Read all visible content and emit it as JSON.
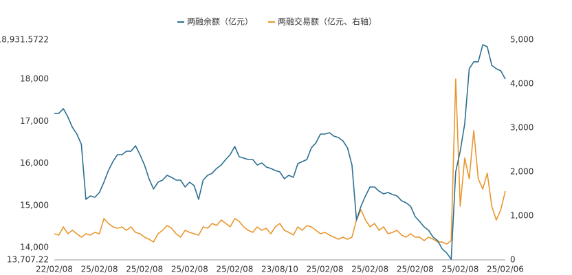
{
  "chart_data": {
    "type": "line",
    "categories": [
      "22/02/08",
      null,
      null,
      null,
      null,
      null,
      null,
      null,
      null,
      null,
      "25/02/08",
      null,
      null,
      null,
      null,
      null,
      null,
      null,
      null,
      null,
      "25/02/08",
      null,
      null,
      null,
      null,
      null,
      null,
      null,
      null,
      null,
      "25/02/08",
      null,
      null,
      null,
      null,
      null,
      null,
      null,
      null,
      null,
      "25/02/08",
      null,
      null,
      null,
      null,
      null,
      null,
      null,
      null,
      null,
      "23/08/10",
      null,
      null,
      null,
      null,
      null,
      null,
      null,
      null,
      null,
      "25/02/08",
      null,
      null,
      null,
      null,
      null,
      null,
      null,
      null,
      null,
      "25/02/08",
      null,
      null,
      null,
      null,
      null,
      null,
      null,
      null,
      null,
      "25/02/08",
      null,
      null,
      null,
      null,
      null,
      null,
      null,
      null,
      null,
      "25/02/08",
      null,
      null,
      null,
      null,
      null,
      null,
      null,
      null,
      null,
      "25/02/06"
    ],
    "series": [
      {
        "name": "两融余额（亿元）",
        "color": "#2b6f8f",
        "axis": "y",
        "values": [
          17185,
          17185,
          17299,
          17103,
          16858,
          16695,
          16450,
          15144,
          15226,
          15193,
          15307,
          15552,
          15830,
          16042,
          16205,
          16205,
          16287,
          16287,
          16418,
          16205,
          15960,
          15634,
          15389,
          15552,
          15601,
          15716,
          15667,
          15601,
          15601,
          15438,
          15552,
          15471,
          15144,
          15601,
          15716,
          15765,
          15879,
          15960,
          16091,
          16205,
          16401,
          16156,
          16124,
          16091,
          16091,
          15960,
          16009,
          15912,
          15879,
          15830,
          15797,
          15634,
          15716,
          15667,
          15993,
          16042,
          16091,
          16369,
          16483,
          16695,
          16695,
          16728,
          16646,
          16614,
          16532,
          16369,
          15960,
          14654,
          14981,
          15226,
          15438,
          15438,
          15340,
          15275,
          15307,
          15258,
          15226,
          15111,
          15063,
          14981,
          14736,
          14622,
          14491,
          14409,
          14246,
          14164,
          13969,
          13871,
          13720,
          15797,
          16287,
          16940,
          18246,
          18410,
          18410,
          18817,
          18768,
          18328,
          18246,
          18197,
          18001
        ]
      },
      {
        "name": "两融交易额（亿元、右轴）",
        "color": "#e8962c",
        "axis": "y2",
        "values": [
          594,
          563,
          750,
          594,
          672,
          594,
          516,
          594,
          563,
          625,
          594,
          938,
          828,
          750,
          719,
          750,
          672,
          750,
          625,
          594,
          516,
          469,
          406,
          594,
          672,
          781,
          719,
          594,
          516,
          672,
          625,
          594,
          563,
          750,
          719,
          828,
          781,
          906,
          828,
          750,
          938,
          875,
          750,
          672,
          625,
          750,
          672,
          719,
          594,
          750,
          828,
          672,
          625,
          563,
          750,
          672,
          781,
          750,
          672,
          594,
          625,
          563,
          516,
          469,
          516,
          469,
          516,
          906,
          1141,
          906,
          750,
          828,
          672,
          750,
          594,
          625,
          672,
          563,
          516,
          594,
          516,
          516,
          438,
          516,
          469,
          406,
          406,
          359,
          438,
          4109,
          1219,
          2313,
          1844,
          2938,
          1844,
          1609,
          1969,
          1219,
          906,
          1141,
          1563
        ]
      }
    ],
    "ylim": [
      13707.22,
      18931.5722
    ],
    "yticks": [
      {
        "value": 13707.22,
        "label": "13,707.22"
      },
      {
        "value": 14000,
        "label": "14,000"
      },
      {
        "value": 15000,
        "label": "15,000"
      },
      {
        "value": 16000,
        "label": "16,000"
      },
      {
        "value": 17000,
        "label": "17,000"
      },
      {
        "value": 18000,
        "label": "18,000"
      },
      {
        "value": 18931.5722,
        "label": "18,931.5722"
      }
    ],
    "y2lim": [
      0,
      5000
    ],
    "y2ticks": [
      0,
      {
        "value": 1000,
        "label": "1,000"
      },
      {
        "value": 2000,
        "label": "2,000"
      },
      {
        "value": 3000,
        "label": "3,000"
      },
      {
        "value": 4000,
        "label": "4,000"
      },
      {
        "value": 5000,
        "label": "5,000"
      }
    ],
    "grid": false
  }
}
